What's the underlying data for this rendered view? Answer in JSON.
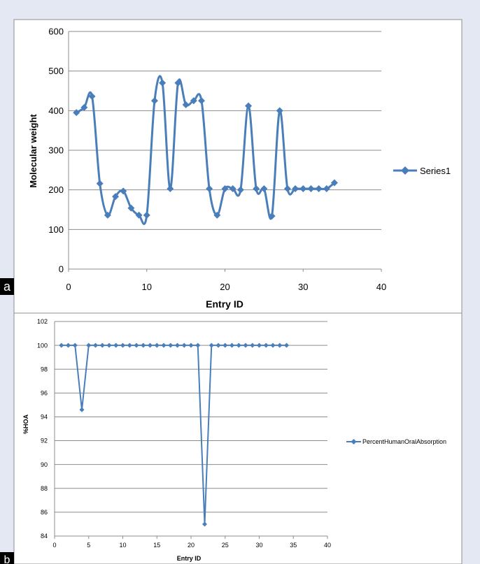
{
  "chart_data": [
    {
      "type": "line",
      "panel_label": "a",
      "xlabel": "Entry ID",
      "ylabel": "Molecular weight",
      "xlim": [
        0,
        40
      ],
      "ylim": [
        0,
        600
      ],
      "x_ticks": [
        0,
        10,
        20,
        30,
        40
      ],
      "y_ticks": [
        0,
        100,
        200,
        300,
        400,
        500,
        600
      ],
      "grid": "horizontal",
      "legend": "right",
      "smooth": true,
      "color": "#4a7ebb",
      "series": [
        {
          "name": "Series1",
          "x": [
            1,
            2,
            3,
            4,
            5,
            6,
            7,
            8,
            9,
            10,
            11,
            12,
            13,
            14,
            15,
            16,
            17,
            18,
            19,
            20,
            21,
            22,
            23,
            24,
            25,
            26,
            27,
            28,
            29,
            30,
            31,
            32,
            33,
            34
          ],
          "values": [
            395,
            408,
            436,
            216,
            136,
            183,
            197,
            154,
            136,
            136,
            425,
            470,
            203,
            470,
            415,
            425,
            425,
            203,
            136,
            203,
            203,
            200,
            412,
            203,
            203,
            134,
            400,
            203,
            203,
            203,
            203,
            203,
            203,
            218
          ]
        }
      ]
    },
    {
      "type": "line",
      "panel_label": "b",
      "xlabel": "Entry ID",
      "ylabel": "%HOA",
      "xlim": [
        0,
        40
      ],
      "ylim": [
        84,
        102
      ],
      "x_ticks": [
        0,
        5,
        10,
        15,
        20,
        25,
        30,
        35,
        40
      ],
      "y_ticks": [
        84,
        86,
        88,
        90,
        92,
        94,
        96,
        98,
        100,
        102
      ],
      "grid": "horizontal",
      "legend": "right",
      "smooth": false,
      "color": "#4a7ebb",
      "series": [
        {
          "name": "PercentHumanOralAbsorption",
          "x": [
            1,
            2,
            3,
            4,
            5,
            6,
            7,
            8,
            9,
            10,
            11,
            12,
            13,
            14,
            15,
            16,
            17,
            18,
            19,
            20,
            21,
            22,
            23,
            24,
            25,
            26,
            27,
            28,
            29,
            30,
            31,
            32,
            33,
            34
          ],
          "values": [
            100,
            100,
            100,
            94.6,
            100,
            100,
            100,
            100,
            100,
            100,
            100,
            100,
            100,
            100,
            100,
            100,
            100,
            100,
            100,
            100,
            100,
            85,
            100,
            100,
            100,
            100,
            100,
            100,
            100,
            100,
            100,
            100,
            100,
            100
          ]
        }
      ]
    }
  ]
}
